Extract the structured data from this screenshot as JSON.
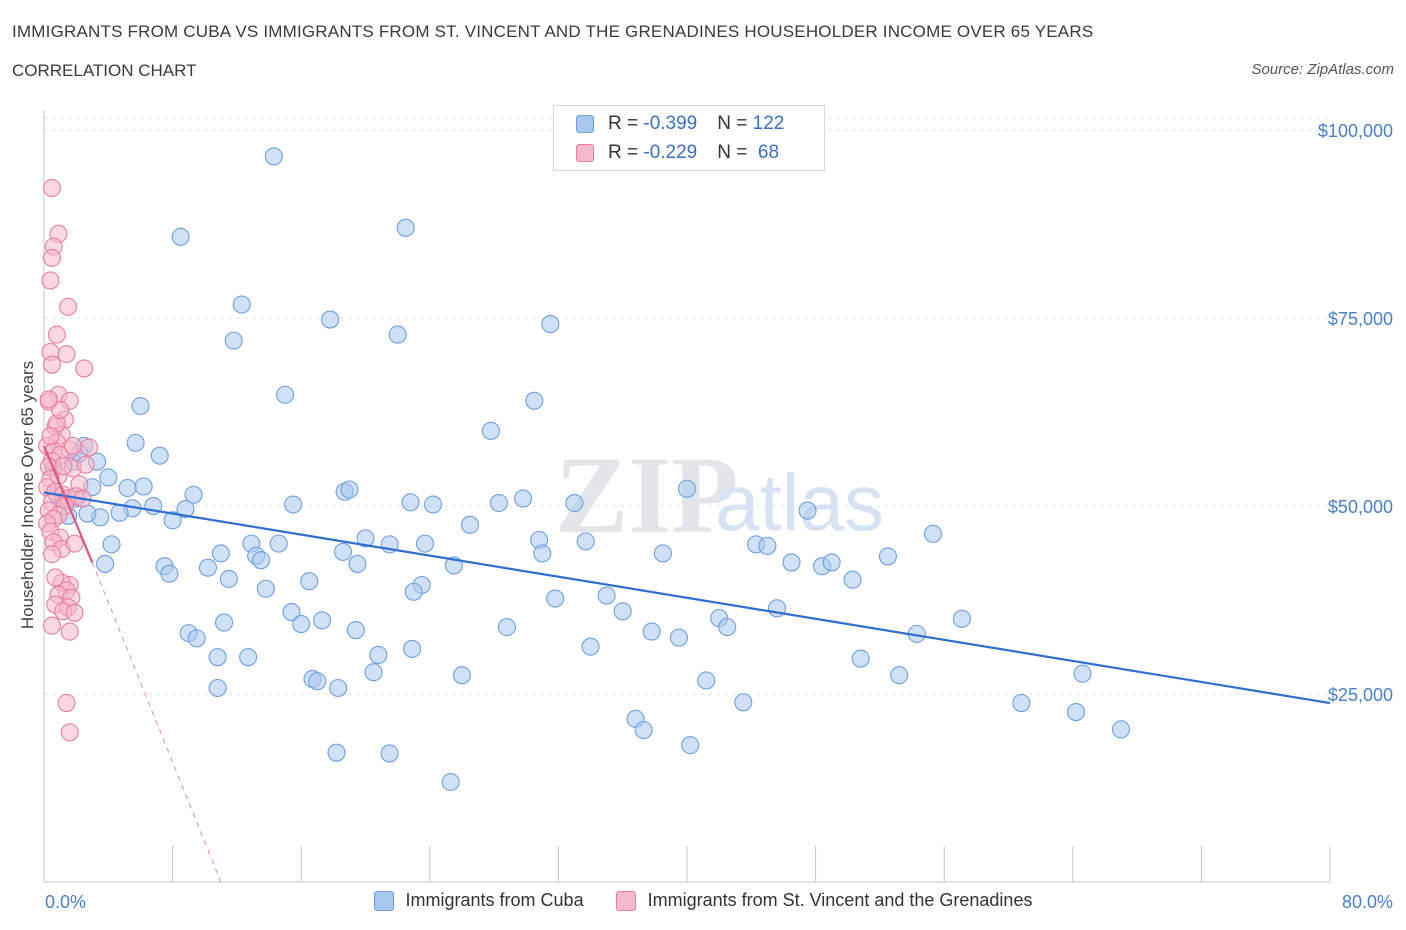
{
  "header": {
    "title": "IMMIGRANTS FROM CUBA VS IMMIGRANTS FROM ST. VINCENT AND THE GRENADINES HOUSEHOLDER INCOME OVER 65 YEARS",
    "subtitle": "CORRELATION CHART",
    "source": "Source: ZipAtlas.com"
  },
  "colors": {
    "cuba_fill": "#a9c8f0",
    "cuba_stroke": "#6f9fdc",
    "cuba_line": "#2f6fd0",
    "svg_fill": "#f6b8cb",
    "svg_stroke": "#e67fa1",
    "svg_line": "#e05585",
    "grid": "#dde3ea",
    "tick_text": "#4a7fc9"
  },
  "legend_top": {
    "rows": [
      {
        "r_label": "R = ",
        "r_value": "-0.399",
        "n_label": "N = ",
        "n_value": "122"
      },
      {
        "r_label": "R = ",
        "r_value": "-0.229",
        "n_label": "N = ",
        "n_value": " 68"
      }
    ]
  },
  "legend_bottom": {
    "items": [
      "Immigrants from Cuba",
      "Immigrants from St. Vincent and the Grenadines"
    ]
  },
  "watermark": {
    "part1": "ZIP",
    "part2": "atlas"
  },
  "chart_data": {
    "type": "scatter",
    "xlabel": "",
    "ylabel": "Householder Income Over 65 years",
    "x_tick_labels": [
      "0.0%",
      "80.0%"
    ],
    "xlim": [
      0,
      80
    ],
    "ylim": [
      0,
      104000
    ],
    "y_ticks": [
      25000,
      50000,
      75000,
      100000
    ],
    "y_tick_labels": [
      "$25,000",
      "$50,000",
      "$75,000",
      "$100,000"
    ],
    "grid": true,
    "legend_position": "top-center",
    "series": [
      {
        "name": "Immigrants from Cuba",
        "trend": {
          "x": [
            0,
            80
          ],
          "y": [
            51800,
            23800
          ]
        },
        "points": [
          [
            14.3,
            96500
          ],
          [
            8.5,
            85800
          ],
          [
            22.5,
            87000
          ],
          [
            11.8,
            72000
          ],
          [
            12.3,
            76800
          ],
          [
            17.8,
            74800
          ],
          [
            22.0,
            72800
          ],
          [
            31.5,
            74200
          ],
          [
            15.0,
            64800
          ],
          [
            30.5,
            64000
          ],
          [
            27.8,
            60000
          ],
          [
            6.0,
            63300
          ],
          [
            5.7,
            58400
          ],
          [
            2.5,
            58000
          ],
          [
            1.8,
            55900
          ],
          [
            7.2,
            56700
          ],
          [
            0.8,
            51500
          ],
          [
            2.0,
            51000
          ],
          [
            4.0,
            53800
          ],
          [
            6.2,
            52600
          ],
          [
            9.3,
            51500
          ],
          [
            5.5,
            49700
          ],
          [
            6.8,
            50000
          ],
          [
            4.7,
            49100
          ],
          [
            3.5,
            48500
          ],
          [
            8.0,
            48100
          ],
          [
            15.5,
            50200
          ],
          [
            18.7,
            51900
          ],
          [
            19.0,
            52200
          ],
          [
            22.8,
            50500
          ],
          [
            24.2,
            50200
          ],
          [
            28.3,
            50400
          ],
          [
            29.8,
            51000
          ],
          [
            33.0,
            50400
          ],
          [
            40.0,
            52300
          ],
          [
            47.5,
            49400
          ],
          [
            26.5,
            47500
          ],
          [
            30.8,
            45500
          ],
          [
            33.7,
            45300
          ],
          [
            21.5,
            44900
          ],
          [
            23.7,
            45000
          ],
          [
            20.0,
            45700
          ],
          [
            14.6,
            45000
          ],
          [
            12.9,
            45000
          ],
          [
            13.2,
            43400
          ],
          [
            11.0,
            43700
          ],
          [
            18.6,
            43900
          ],
          [
            19.5,
            42300
          ],
          [
            25.5,
            42100
          ],
          [
            31.0,
            43700
          ],
          [
            38.5,
            43700
          ],
          [
            44.3,
            44900
          ],
          [
            46.5,
            42500
          ],
          [
            48.4,
            42000
          ],
          [
            49.0,
            42500
          ],
          [
            52.5,
            43300
          ],
          [
            55.3,
            46300
          ],
          [
            3.8,
            42300
          ],
          [
            4.2,
            44900
          ],
          [
            7.5,
            42000
          ],
          [
            7.8,
            41000
          ],
          [
            10.2,
            41800
          ],
          [
            11.5,
            40300
          ],
          [
            13.8,
            39000
          ],
          [
            16.5,
            40000
          ],
          [
            23.5,
            39500
          ],
          [
            23.0,
            38600
          ],
          [
            31.8,
            37700
          ],
          [
            35.0,
            38100
          ],
          [
            50.3,
            40200
          ],
          [
            36.0,
            36000
          ],
          [
            15.4,
            35900
          ],
          [
            16.0,
            34300
          ],
          [
            17.3,
            34800
          ],
          [
            11.2,
            34500
          ],
          [
            9.0,
            33100
          ],
          [
            9.5,
            32400
          ],
          [
            19.4,
            33500
          ],
          [
            28.8,
            33900
          ],
          [
            37.8,
            33300
          ],
          [
            39.5,
            32500
          ],
          [
            42.0,
            35100
          ],
          [
            42.5,
            33900
          ],
          [
            45.6,
            36400
          ],
          [
            57.1,
            35000
          ],
          [
            54.3,
            33000
          ],
          [
            34.0,
            31300
          ],
          [
            22.9,
            31000
          ],
          [
            10.8,
            29900
          ],
          [
            12.7,
            29900
          ],
          [
            20.5,
            27900
          ],
          [
            26.0,
            27500
          ],
          [
            16.7,
            27000
          ],
          [
            17.0,
            26700
          ],
          [
            18.3,
            25800
          ],
          [
            20.8,
            30200
          ],
          [
            10.8,
            25800
          ],
          [
            41.2,
            26800
          ],
          [
            53.2,
            27500
          ],
          [
            50.8,
            29700
          ],
          [
            64.6,
            27700
          ],
          [
            60.8,
            23800
          ],
          [
            43.5,
            23900
          ],
          [
            36.8,
            21700
          ],
          [
            37.3,
            20200
          ],
          [
            40.2,
            18200
          ],
          [
            64.2,
            22600
          ],
          [
            67.0,
            20300
          ],
          [
            18.2,
            17200
          ],
          [
            21.5,
            17100
          ],
          [
            25.3,
            13300
          ],
          [
            2.2,
            57000
          ],
          [
            3.0,
            52500
          ],
          [
            1.2,
            50800
          ],
          [
            2.7,
            49000
          ],
          [
            0.6,
            55000
          ],
          [
            3.3,
            55900
          ],
          [
            1.5,
            48700
          ],
          [
            8.8,
            49600
          ],
          [
            5.2,
            52400
          ],
          [
            45.0,
            44700
          ],
          [
            13.5,
            42800
          ]
        ]
      },
      {
        "name": "Immigrants from St. Vincent and the Grenadines",
        "trend": {
          "x": [
            0,
            3.0
          ],
          "y": [
            58000,
            42500
          ]
        },
        "trend_extension": {
          "x": [
            3.0,
            11.0
          ],
          "y": [
            42500,
            0
          ]
        },
        "points": [
          [
            0.5,
            92300
          ],
          [
            0.9,
            86200
          ],
          [
            0.6,
            84500
          ],
          [
            0.5,
            83000
          ],
          [
            0.4,
            80000
          ],
          [
            1.5,
            76500
          ],
          [
            0.8,
            72800
          ],
          [
            1.4,
            70200
          ],
          [
            0.4,
            70500
          ],
          [
            0.5,
            68800
          ],
          [
            2.5,
            68300
          ],
          [
            0.9,
            64800
          ],
          [
            1.6,
            64000
          ],
          [
            0.3,
            63900
          ],
          [
            1.3,
            61500
          ],
          [
            0.7,
            60500
          ],
          [
            1.1,
            59500
          ],
          [
            0.8,
            58500
          ],
          [
            0.2,
            58000
          ],
          [
            1.6,
            57500
          ],
          [
            2.8,
            57800
          ],
          [
            0.6,
            57300
          ],
          [
            1.0,
            56800
          ],
          [
            0.5,
            56000
          ],
          [
            0.3,
            55200
          ],
          [
            1.8,
            55000
          ],
          [
            0.9,
            54000
          ],
          [
            0.4,
            53600
          ],
          [
            2.2,
            52900
          ],
          [
            0.2,
            52500
          ],
          [
            0.7,
            51900
          ],
          [
            1.2,
            51500
          ],
          [
            1.5,
            51000
          ],
          [
            2.0,
            51300
          ],
          [
            0.5,
            50500
          ],
          [
            1.3,
            50000
          ],
          [
            0.3,
            49400
          ],
          [
            0.9,
            48800
          ],
          [
            0.6,
            48300
          ],
          [
            0.2,
            47700
          ],
          [
            0.4,
            46600
          ],
          [
            1.0,
            45800
          ],
          [
            0.6,
            45200
          ],
          [
            1.1,
            44300
          ],
          [
            0.5,
            43600
          ],
          [
            1.6,
            39500
          ],
          [
            1.1,
            39800
          ],
          [
            1.4,
            38800
          ],
          [
            0.9,
            38200
          ],
          [
            1.7,
            37800
          ],
          [
            0.7,
            36900
          ],
          [
            1.5,
            36500
          ],
          [
            1.2,
            36000
          ],
          [
            1.9,
            35800
          ],
          [
            1.6,
            33300
          ],
          [
            0.5,
            34100
          ],
          [
            1.4,
            23800
          ],
          [
            1.6,
            19900
          ],
          [
            2.4,
            51000
          ],
          [
            1.8,
            58000
          ],
          [
            0.8,
            61000
          ],
          [
            1.0,
            62800
          ],
          [
            0.4,
            59300
          ],
          [
            2.6,
            55500
          ],
          [
            0.3,
            64200
          ],
          [
            1.2,
            55300
          ],
          [
            1.9,
            45000
          ],
          [
            0.7,
            40500
          ]
        ]
      }
    ]
  }
}
